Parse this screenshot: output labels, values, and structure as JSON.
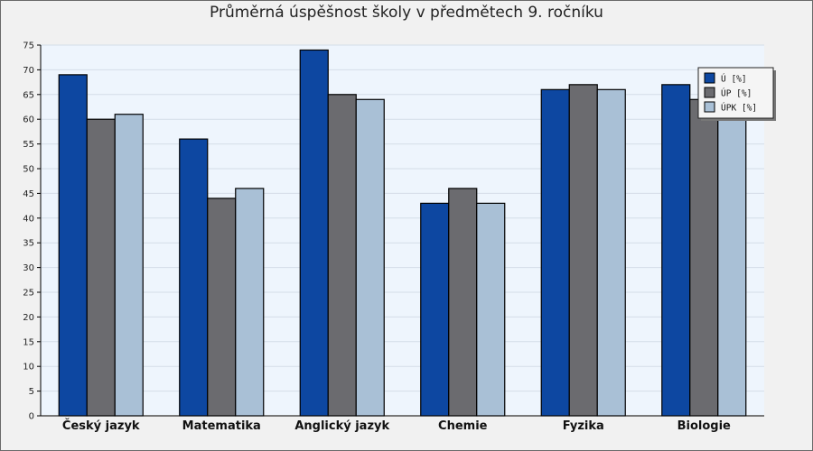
{
  "chart_data": {
    "type": "bar",
    "title": "Průměrná úspěšnost školy v předmětech 9. ročníku",
    "xlabel": "",
    "ylabel": "",
    "categories": [
      "Český jazyk",
      "Matematika",
      "Anglický jazyk",
      "Chemie",
      "Fyzika",
      "Biologie"
    ],
    "series": [
      {
        "name": "Ú [%]",
        "color": "#0d47a1",
        "values": [
          69,
          56,
          74,
          43,
          66,
          67
        ]
      },
      {
        "name": "ÚP [%]",
        "color": "#6b6b6f",
        "values": [
          60,
          44,
          65,
          46,
          67,
          64
        ]
      },
      {
        "name": "ÚPK [%]",
        "color": "#a9c0d6",
        "values": [
          61,
          46,
          64,
          43,
          66,
          63
        ]
      }
    ],
    "ylim": [
      0,
      75
    ],
    "yticks": [
      0,
      5,
      10,
      15,
      20,
      25,
      30,
      35,
      40,
      45,
      50,
      55,
      60,
      65,
      70,
      75
    ],
    "grid": true,
    "legend_position": "top-right"
  }
}
